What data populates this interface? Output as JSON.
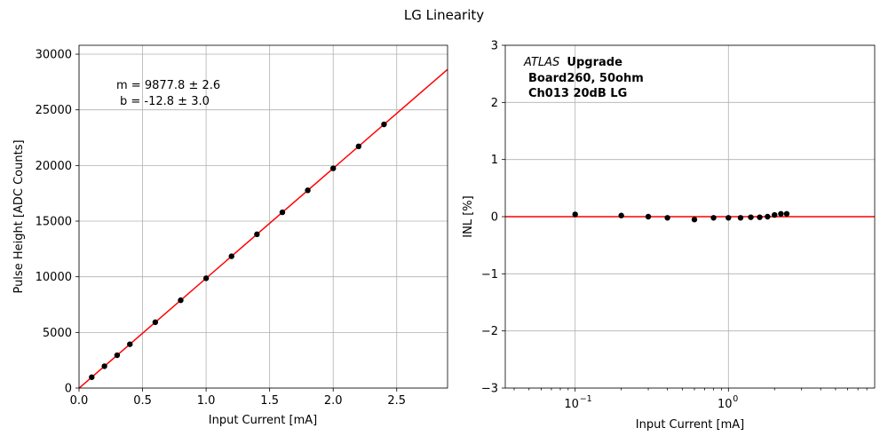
{
  "figure_title": "LG Linearity",
  "chart_data": [
    {
      "type": "scatter",
      "xlabel": "Input Current [mA]",
      "ylabel": "Pulse Height [ADC Counts]",
      "xlim": [
        0,
        2.9
      ],
      "ylim": [
        0,
        30800
      ],
      "xticks": [
        0,
        0.5,
        1.0,
        1.5,
        2.0,
        2.5
      ],
      "xtick_labels": [
        "0.0",
        "0.5",
        "1.0",
        "1.5",
        "2.0",
        "2.5"
      ],
      "yticks": [
        0,
        5000,
        10000,
        15000,
        20000,
        25000,
        30000
      ],
      "ytick_labels": [
        "0",
        "5000",
        "10000",
        "15000",
        "20000",
        "25000",
        "30000"
      ],
      "grid": true,
      "annotations": [
        "m = 9877.8 ± 2.6",
        "b = -12.8 ± 3.0"
      ],
      "fit_line": {
        "slope": 9877.8,
        "intercept": -12.8,
        "color": "#ff0000"
      },
      "marker_color": "#000000",
      "x": [
        0.1,
        0.2,
        0.3,
        0.4,
        0.6,
        0.8,
        1.0,
        1.2,
        1.4,
        1.6,
        1.8,
        2.0,
        2.2,
        2.4
      ],
      "y": [
        975,
        1963,
        2951,
        3938,
        5914,
        7890,
        9865,
        11841,
        13816,
        15792,
        17768,
        19743,
        21719,
        23694
      ]
    },
    {
      "type": "scatter",
      "xlabel": "Input Current [mA]",
      "ylabel": "INL [%]",
      "xscale": "log",
      "xlim": [
        0.035,
        9
      ],
      "ylim": [
        -3,
        3
      ],
      "xticks": [
        0.1,
        1
      ],
      "xtick_labels": [
        "10",
        "10"
      ],
      "xtick_exponents": [
        "−1",
        "0"
      ],
      "yticks": [
        -3,
        -2,
        -1,
        0,
        1,
        2,
        3
      ],
      "ytick_labels": [
        "−3",
        "−2",
        "−1",
        "0",
        "1",
        "2",
        "3"
      ],
      "grid": true,
      "reference_line": {
        "y": 0,
        "color": "#ff0000"
      },
      "marker_color": "#000000",
      "legend_text": {
        "italic": "ATLAS",
        "bold": "Upgrade",
        "line2": "Board260, 50ohm",
        "line3": "Ch013 20dB LG"
      },
      "x": [
        0.1,
        0.2,
        0.3,
        0.4,
        0.6,
        0.8,
        1.0,
        1.2,
        1.4,
        1.6,
        1.8,
        2.0,
        2.2,
        2.4
      ],
      "y": [
        0.04,
        0.02,
        0.0,
        -0.02,
        -0.05,
        -0.02,
        -0.02,
        -0.02,
        -0.01,
        -0.01,
        0.0,
        0.03,
        0.05,
        0.05
      ]
    }
  ]
}
